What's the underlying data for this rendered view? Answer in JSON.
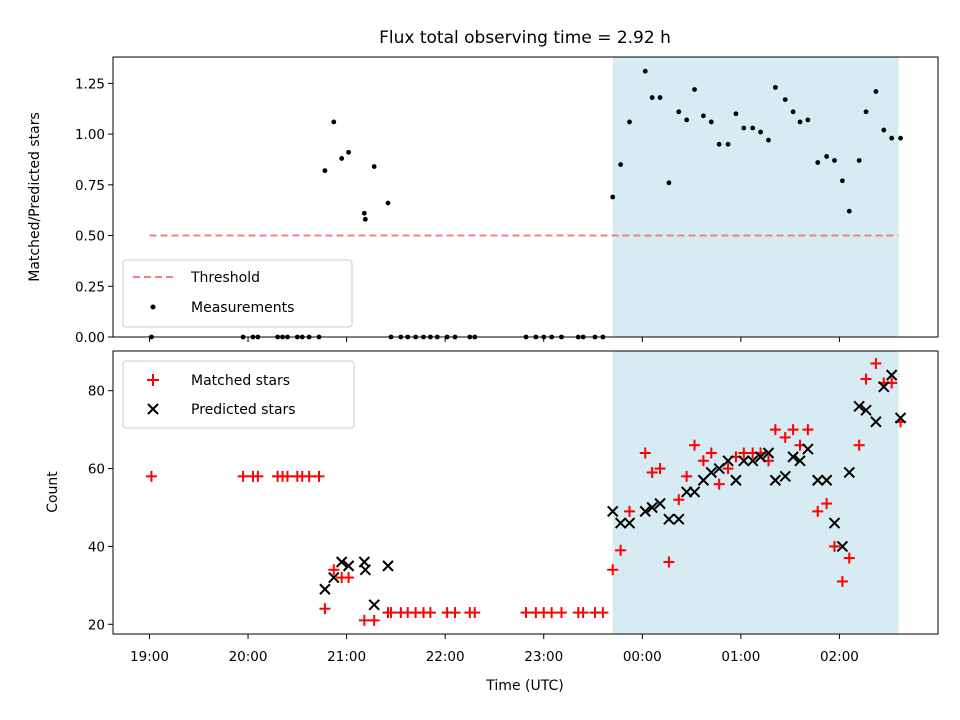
{
  "chart_data": [
    {
      "type": "scatter",
      "title": "Flux total observing time = 2.92 h",
      "xlabel": "",
      "ylabel": "Matched/Predicted stars",
      "xlim": [
        -0.37,
        8.0
      ],
      "ylim": [
        0,
        1.38
      ],
      "yticks": [
        0.0,
        0.25,
        0.5,
        0.75,
        1.0,
        1.25
      ],
      "ytick_labels": [
        "0.00",
        "0.25",
        "0.50",
        "0.75",
        "1.00",
        "1.25"
      ],
      "xticks": [
        0,
        1,
        2,
        3,
        4,
        5,
        6,
        7
      ],
      "shaded_region": {
        "x0": 4.7,
        "x1": 7.6,
        "color": "#add8e6"
      },
      "legend": {
        "position": "lower-left",
        "entries": [
          "Threshold",
          "Measurements"
        ]
      },
      "threshold": {
        "name": "Threshold",
        "y": 0.5,
        "x": [
          0.0,
          7.6
        ],
        "color": "#f08080"
      },
      "series": [
        {
          "name": "Measurements",
          "color": "#000000",
          "points": [
            [
              0.02,
              0.0
            ],
            [
              0.95,
              0.0
            ],
            [
              1.05,
              0.0
            ],
            [
              1.1,
              0.0
            ],
            [
              1.3,
              0.0
            ],
            [
              1.35,
              0.0
            ],
            [
              1.4,
              0.0
            ],
            [
              1.5,
              0.0
            ],
            [
              1.55,
              0.0
            ],
            [
              1.62,
              0.0
            ],
            [
              1.72,
              0.0
            ],
            [
              1.78,
              0.82
            ],
            [
              1.87,
              1.06
            ],
            [
              1.95,
              0.88
            ],
            [
              2.02,
              0.91
            ],
            [
              2.18,
              0.61
            ],
            [
              2.19,
              0.58
            ],
            [
              2.28,
              0.84
            ],
            [
              2.42,
              0.66
            ],
            [
              2.45,
              0.0
            ],
            [
              2.55,
              0.0
            ],
            [
              2.62,
              0.0
            ],
            [
              2.7,
              0.0
            ],
            [
              2.78,
              0.0
            ],
            [
              2.85,
              0.0
            ],
            [
              2.92,
              0.0
            ],
            [
              3.02,
              0.0
            ],
            [
              3.1,
              0.0
            ],
            [
              3.25,
              0.0
            ],
            [
              3.3,
              0.0
            ],
            [
              3.82,
              0.0
            ],
            [
              3.92,
              0.0
            ],
            [
              4.0,
              0.0
            ],
            [
              4.08,
              0.0
            ],
            [
              4.18,
              0.0
            ],
            [
              4.35,
              0.0
            ],
            [
              4.4,
              0.0
            ],
            [
              4.52,
              0.0
            ],
            [
              4.6,
              0.0
            ],
            [
              4.7,
              0.69
            ],
            [
              4.78,
              0.85
            ],
            [
              4.87,
              1.06
            ],
            [
              5.03,
              1.31
            ],
            [
              5.1,
              1.18
            ],
            [
              5.18,
              1.18
            ],
            [
              5.27,
              0.76
            ],
            [
              5.37,
              1.11
            ],
            [
              5.45,
              1.07
            ],
            [
              5.53,
              1.22
            ],
            [
              5.62,
              1.09
            ],
            [
              5.7,
              1.06
            ],
            [
              5.78,
              0.95
            ],
            [
              5.87,
              0.95
            ],
            [
              5.95,
              1.1
            ],
            [
              6.03,
              1.03
            ],
            [
              6.12,
              1.03
            ],
            [
              6.2,
              1.01
            ],
            [
              6.28,
              0.97
            ],
            [
              6.35,
              1.23
            ],
            [
              6.45,
              1.17
            ],
            [
              6.53,
              1.11
            ],
            [
              6.6,
              1.06
            ],
            [
              6.68,
              1.07
            ],
            [
              6.78,
              0.86
            ],
            [
              6.87,
              0.89
            ],
            [
              6.95,
              0.87
            ],
            [
              7.03,
              0.77
            ],
            [
              7.1,
              0.62
            ],
            [
              7.2,
              0.87
            ],
            [
              7.27,
              1.11
            ],
            [
              7.37,
              1.21
            ],
            [
              7.45,
              1.02
            ],
            [
              7.53,
              0.98
            ],
            [
              7.62,
              0.98
            ]
          ]
        }
      ]
    },
    {
      "type": "scatter",
      "title": "",
      "xlabel": "Time (UTC)",
      "ylabel": "Count",
      "xlim": [
        -0.37,
        8.0
      ],
      "ylim": [
        17.5,
        90.2
      ],
      "yticks": [
        20,
        40,
        60,
        80
      ],
      "ytick_labels": [
        "20",
        "40",
        "60",
        "80"
      ],
      "xticks": [
        0,
        1,
        2,
        3,
        4,
        5,
        6,
        7
      ],
      "xtick_labels": [
        "19:00",
        "20:00",
        "21:00",
        "22:00",
        "23:00",
        "00:00",
        "01:00",
        "02:00"
      ],
      "shaded_region": {
        "x0": 4.7,
        "x1": 7.6,
        "color": "#add8e6"
      },
      "legend": {
        "position": "top-left",
        "entries": [
          "Matched stars",
          "Predicted stars"
        ]
      },
      "series": [
        {
          "name": "Matched stars",
          "color": "#ff0000",
          "marker": "plus",
          "points": [
            [
              0.02,
              58
            ],
            [
              0.95,
              58
            ],
            [
              1.05,
              58
            ],
            [
              1.1,
              58
            ],
            [
              1.3,
              58
            ],
            [
              1.35,
              58
            ],
            [
              1.4,
              58
            ],
            [
              1.5,
              58
            ],
            [
              1.55,
              58
            ],
            [
              1.62,
              58
            ],
            [
              1.72,
              58
            ],
            [
              1.78,
              24
            ],
            [
              1.87,
              34
            ],
            [
              1.95,
              32
            ],
            [
              2.02,
              32
            ],
            [
              2.18,
              21
            ],
            [
              2.28,
              21
            ],
            [
              2.42,
              23
            ],
            [
              2.45,
              23
            ],
            [
              2.55,
              23
            ],
            [
              2.62,
              23
            ],
            [
              2.7,
              23
            ],
            [
              2.78,
              23
            ],
            [
              2.85,
              23
            ],
            [
              3.02,
              23
            ],
            [
              3.1,
              23
            ],
            [
              3.25,
              23
            ],
            [
              3.3,
              23
            ],
            [
              3.82,
              23
            ],
            [
              3.92,
              23
            ],
            [
              4.0,
              23
            ],
            [
              4.08,
              23
            ],
            [
              4.18,
              23
            ],
            [
              4.35,
              23
            ],
            [
              4.4,
              23
            ],
            [
              4.52,
              23
            ],
            [
              4.6,
              23
            ],
            [
              4.7,
              34
            ],
            [
              4.78,
              39
            ],
            [
              4.87,
              49
            ],
            [
              5.03,
              64
            ],
            [
              5.1,
              59
            ],
            [
              5.18,
              60
            ],
            [
              5.27,
              36
            ],
            [
              5.37,
              52
            ],
            [
              5.45,
              58
            ],
            [
              5.53,
              66
            ],
            [
              5.62,
              62
            ],
            [
              5.7,
              64
            ],
            [
              5.78,
              56
            ],
            [
              5.87,
              60
            ],
            [
              5.95,
              63
            ],
            [
              6.03,
              64
            ],
            [
              6.12,
              64
            ],
            [
              6.2,
              64
            ],
            [
              6.28,
              62
            ],
            [
              6.35,
              70
            ],
            [
              6.45,
              68
            ],
            [
              6.53,
              70
            ],
            [
              6.6,
              66
            ],
            [
              6.68,
              70
            ],
            [
              6.78,
              49
            ],
            [
              6.87,
              51
            ],
            [
              6.95,
              40
            ],
            [
              7.03,
              31
            ],
            [
              7.1,
              37
            ],
            [
              7.2,
              66
            ],
            [
              7.27,
              83
            ],
            [
              7.37,
              87
            ],
            [
              7.45,
              82
            ],
            [
              7.53,
              82
            ],
            [
              7.62,
              72
            ]
          ]
        },
        {
          "name": "Predicted stars",
          "color": "#000000",
          "marker": "x",
          "points": [
            [
              1.78,
              29
            ],
            [
              1.87,
              32
            ],
            [
              1.95,
              36
            ],
            [
              2.02,
              35
            ],
            [
              2.18,
              36
            ],
            [
              2.19,
              34
            ],
            [
              2.28,
              25
            ],
            [
              2.42,
              35
            ],
            [
              4.7,
              49
            ],
            [
              4.78,
              46
            ],
            [
              4.87,
              46
            ],
            [
              5.03,
              49
            ],
            [
              5.1,
              50
            ],
            [
              5.18,
              51
            ],
            [
              5.27,
              47
            ],
            [
              5.37,
              47
            ],
            [
              5.45,
              54
            ],
            [
              5.53,
              54
            ],
            [
              5.62,
              57
            ],
            [
              5.7,
              59
            ],
            [
              5.78,
              60
            ],
            [
              5.87,
              62
            ],
            [
              5.95,
              57
            ],
            [
              6.03,
              62
            ],
            [
              6.12,
              62
            ],
            [
              6.2,
              63
            ],
            [
              6.28,
              64
            ],
            [
              6.35,
              57
            ],
            [
              6.45,
              58
            ],
            [
              6.53,
              63
            ],
            [
              6.6,
              62
            ],
            [
              6.68,
              65
            ],
            [
              6.78,
              57
            ],
            [
              6.87,
              57
            ],
            [
              6.95,
              46
            ],
            [
              7.03,
              40
            ],
            [
              7.1,
              59
            ],
            [
              7.2,
              76
            ],
            [
              7.27,
              75
            ],
            [
              7.37,
              72
            ],
            [
              7.45,
              81
            ],
            [
              7.53,
              84
            ],
            [
              7.62,
              73
            ]
          ]
        }
      ]
    }
  ]
}
